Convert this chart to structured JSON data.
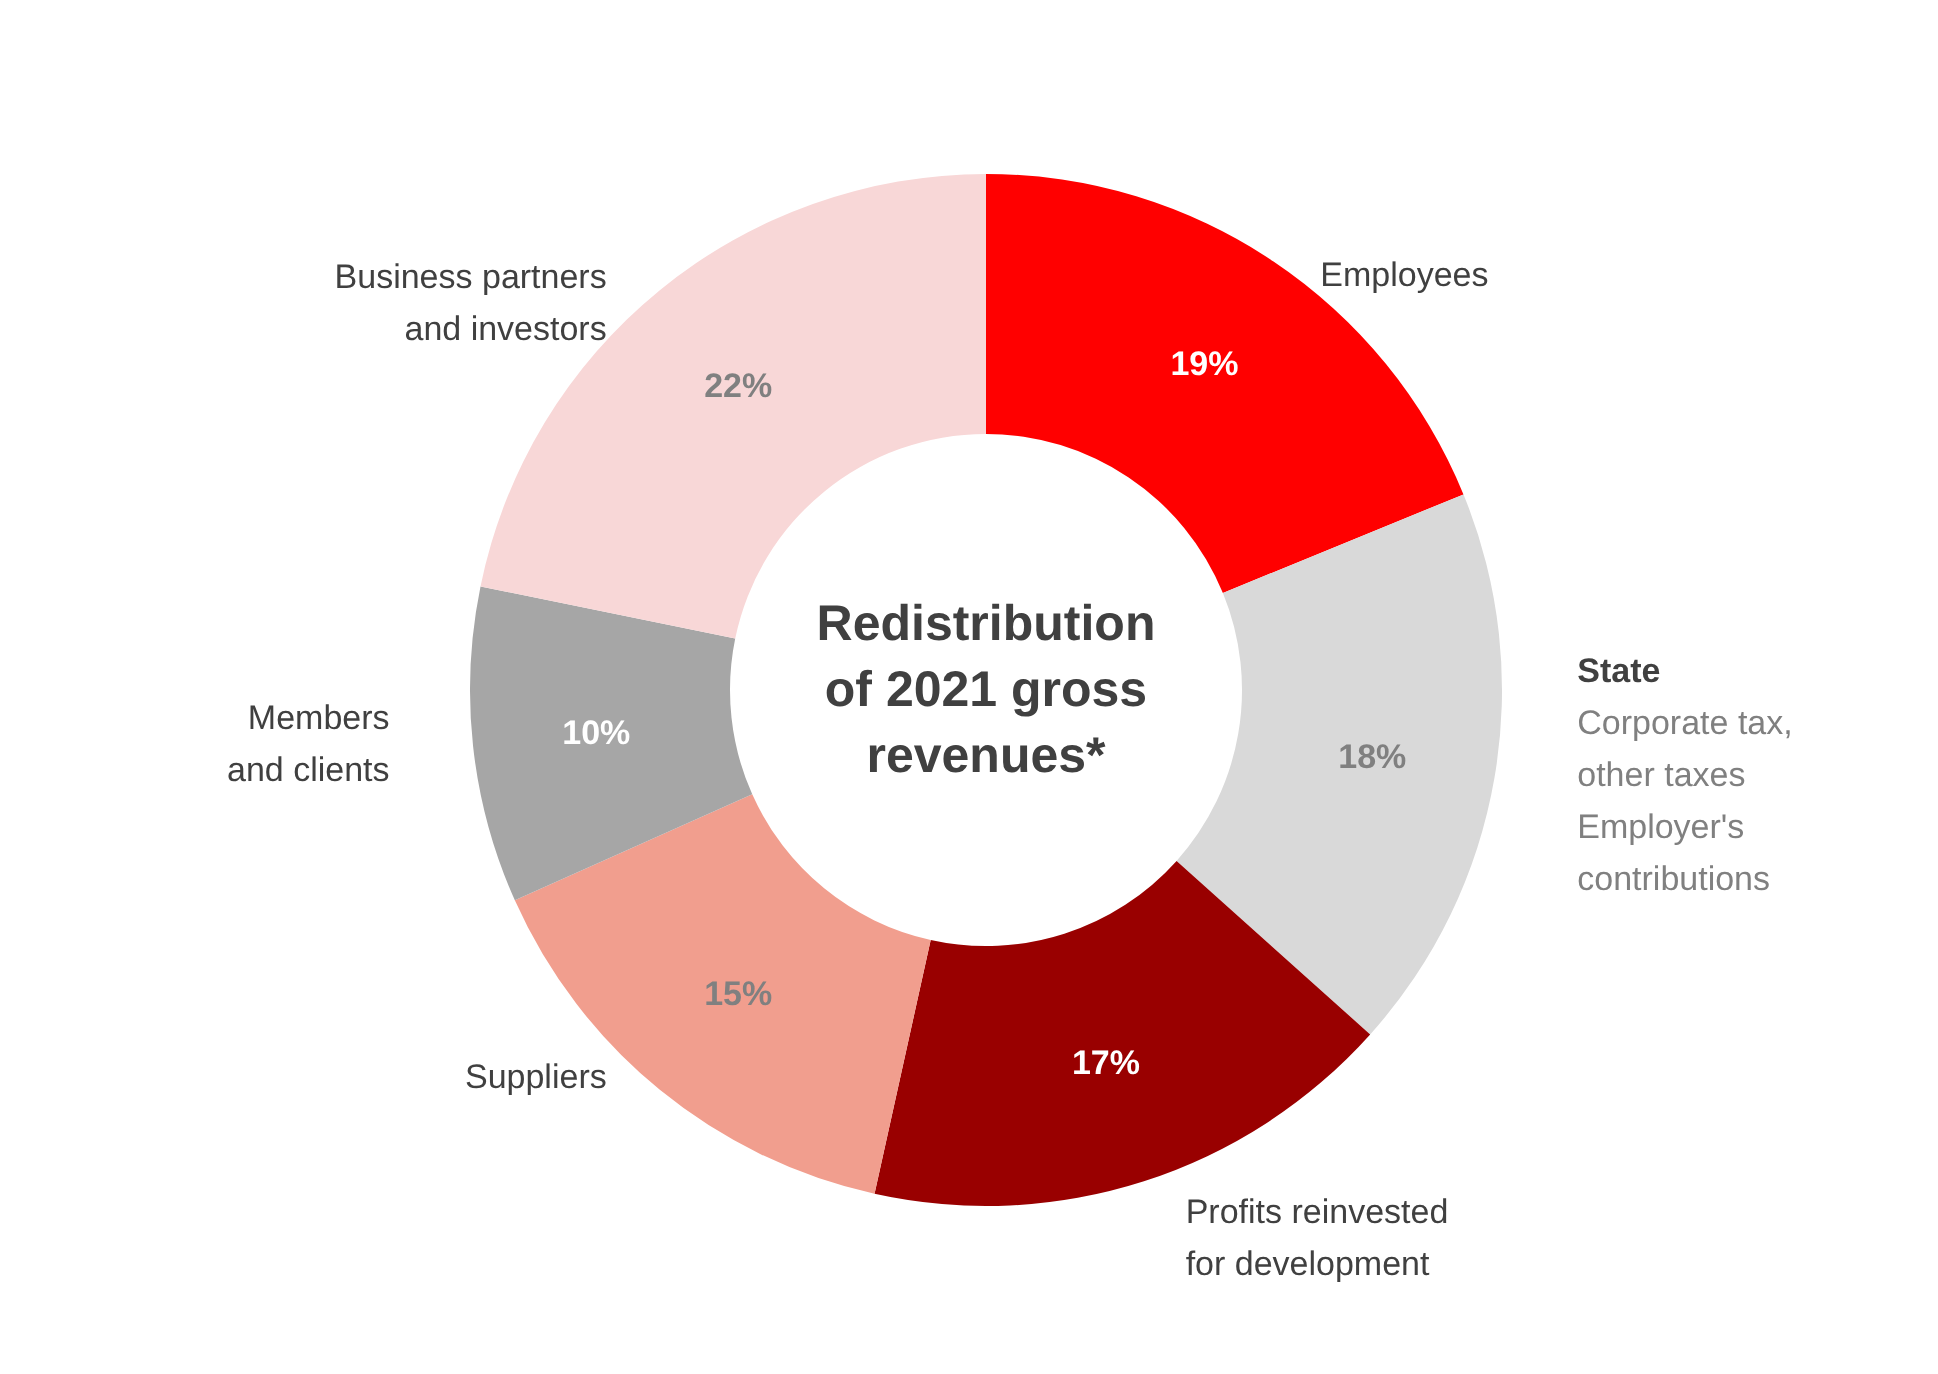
{
  "chart_data": {
    "type": "donut",
    "title": "Redistribution\nof 2021 gross\nrevenues*",
    "categories": [
      "Employees",
      "State",
      "Profits reinvested\nfor development",
      "Suppliers",
      "Members\nand clients",
      "Business partners\nand investors"
    ],
    "values": [
      19,
      18,
      17,
      15,
      10,
      22
    ],
    "value_labels": [
      "19%",
      "18%",
      "17%",
      "15%",
      "10%",
      "22%"
    ],
    "colors": [
      "#ff0000",
      "#d9d9d9",
      "#990000",
      "#f19e8e",
      "#a6a6a6",
      "#f8d7d7"
    ],
    "annotations": [
      {
        "text": "Corporate tax,\nother taxes\nEmployer's\ncontributions",
        "x": "State"
      }
    ],
    "legend": false
  }
}
